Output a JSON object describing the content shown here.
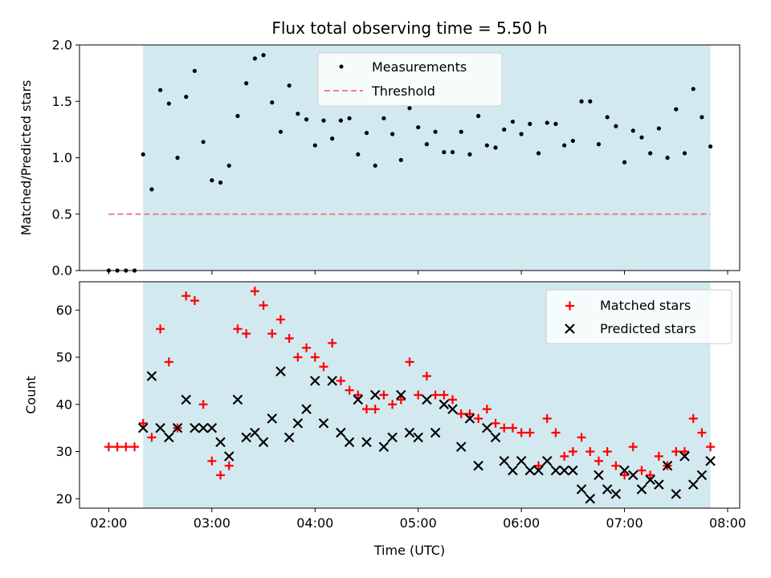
{
  "chart_data": [
    {
      "type": "scatter",
      "title": "Flux total observing time = 5.50 h",
      "xlabel": "",
      "ylabel": "Matched/Predicted stars",
      "xlim": [
        "01:43",
        "08:07"
      ],
      "ylim": [
        0,
        2.0
      ],
      "yticks": [
        "0.0",
        "0.5",
        "1.0",
        "1.5",
        "2.0"
      ],
      "xticks": [
        "02:00",
        "03:00",
        "04:00",
        "05:00",
        "06:00",
        "07:00",
        "08:00"
      ],
      "shaded_span": {
        "start": "02:20",
        "end": "07:50",
        "color": "#d3e9f0"
      },
      "legend": {
        "placement": "top-center",
        "entries": [
          "Measurements",
          "Threshold"
        ]
      },
      "series": [
        {
          "name": "Measurements",
          "marker": "dot",
          "color": "#000000",
          "x": [
            "02:00",
            "02:05",
            "02:10",
            "02:15",
            "02:20",
            "02:25",
            "02:30",
            "02:35",
            "02:40",
            "02:45",
            "02:50",
            "02:55",
            "03:00",
            "03:05",
            "03:10",
            "03:15",
            "03:20",
            "03:25",
            "03:30",
            "03:35",
            "03:40",
            "03:45",
            "03:50",
            "03:55",
            "04:00",
            "04:05",
            "04:10",
            "04:15",
            "04:20",
            "04:25",
            "04:30",
            "04:35",
            "04:40",
            "04:45",
            "04:50",
            "04:55",
            "05:00",
            "05:05",
            "05:10",
            "05:15",
            "05:20",
            "05:25",
            "05:30",
            "05:35",
            "05:40",
            "05:45",
            "05:50",
            "05:55",
            "06:00",
            "06:05",
            "06:10",
            "06:15",
            "06:20",
            "06:25",
            "06:30",
            "06:35",
            "06:40",
            "06:45",
            "06:50",
            "06:55",
            "07:00",
            "07:05",
            "07:10",
            "07:15",
            "07:20",
            "07:25",
            "07:30",
            "07:35",
            "07:40",
            "07:45",
            "07:50"
          ],
          "y": [
            0,
            0,
            0,
            0,
            1.03,
            0.72,
            1.6,
            1.48,
            1.0,
            1.54,
            1.77,
            1.14,
            0.8,
            0.78,
            0.93,
            1.37,
            1.66,
            1.88,
            1.91,
            1.49,
            1.23,
            1.64,
            1.39,
            1.34,
            1.11,
            1.33,
            1.17,
            1.33,
            1.35,
            1.03,
            1.22,
            0.93,
            1.35,
            1.21,
            0.98,
            1.44,
            1.27,
            1.12,
            1.23,
            1.05,
            1.05,
            1.23,
            1.03,
            1.37,
            1.11,
            1.09,
            1.25,
            1.32,
            1.21,
            1.3,
            1.04,
            1.31,
            1.3,
            1.11,
            1.15,
            1.5,
            1.5,
            1.12,
            1.36,
            1.28,
            0.96,
            1.24,
            1.18,
            1.04,
            1.26,
            1.0,
            1.43,
            1.04,
            1.61,
            1.36,
            1.1
          ]
        },
        {
          "name": "Threshold",
          "marker": "dashed-line",
          "color": "#f08080",
          "x": [
            "02:00",
            "07:50"
          ],
          "y": [
            0.5,
            0.5
          ]
        }
      ]
    },
    {
      "type": "scatter",
      "title": "",
      "xlabel": "Time (UTC)",
      "ylabel": "Count",
      "xlim": [
        "01:43",
        "08:07"
      ],
      "ylim": [
        18,
        66
      ],
      "yticks": [
        "20",
        "30",
        "40",
        "50",
        "60"
      ],
      "xticks": [
        "02:00",
        "03:00",
        "04:00",
        "05:00",
        "06:00",
        "07:00",
        "08:00"
      ],
      "shaded_span": {
        "start": "02:20",
        "end": "07:50",
        "color": "#d3e9f0"
      },
      "legend": {
        "placement": "top-right",
        "entries": [
          "Matched stars",
          "Predicted stars"
        ]
      },
      "series": [
        {
          "name": "Matched stars",
          "marker": "plus",
          "color": "#ff0000",
          "x": [
            "02:00",
            "02:05",
            "02:10",
            "02:15",
            "02:20",
            "02:25",
            "02:30",
            "02:35",
            "02:40",
            "02:45",
            "02:50",
            "02:55",
            "03:00",
            "03:05",
            "03:10",
            "03:15",
            "03:20",
            "03:25",
            "03:30",
            "03:35",
            "03:40",
            "03:45",
            "03:50",
            "03:55",
            "04:00",
            "04:05",
            "04:10",
            "04:15",
            "04:20",
            "04:25",
            "04:30",
            "04:35",
            "04:40",
            "04:45",
            "04:50",
            "04:55",
            "05:00",
            "05:05",
            "05:10",
            "05:15",
            "05:20",
            "05:25",
            "05:30",
            "05:35",
            "05:40",
            "05:45",
            "05:50",
            "05:55",
            "06:00",
            "06:05",
            "06:10",
            "06:15",
            "06:20",
            "06:25",
            "06:30",
            "06:35",
            "06:40",
            "06:45",
            "06:50",
            "06:55",
            "07:00",
            "07:05",
            "07:10",
            "07:15",
            "07:20",
            "07:25",
            "07:30",
            "07:35",
            "07:40",
            "07:45",
            "07:50"
          ],
          "y": [
            31,
            31,
            31,
            31,
            36,
            33,
            56,
            49,
            35,
            63,
            62,
            40,
            28,
            25,
            27,
            56,
            55,
            64,
            61,
            55,
            58,
            54,
            50,
            52,
            50,
            48,
            53,
            45,
            43,
            42,
            39,
            39,
            42,
            40,
            41,
            49,
            42,
            46,
            42,
            42,
            41,
            38,
            38,
            37,
            39,
            36,
            35,
            35,
            34,
            34,
            27,
            37,
            34,
            29,
            30,
            33,
            30,
            28,
            30,
            27,
            25,
            31,
            26,
            25,
            29,
            27,
            30,
            30,
            37,
            34,
            31
          ]
        },
        {
          "name": "Predicted stars",
          "marker": "x",
          "color": "#000000",
          "x": [
            "02:20",
            "02:25",
            "02:30",
            "02:35",
            "02:40",
            "02:45",
            "02:50",
            "02:55",
            "03:00",
            "03:05",
            "03:10",
            "03:15",
            "03:20",
            "03:25",
            "03:30",
            "03:35",
            "03:40",
            "03:45",
            "03:50",
            "03:55",
            "04:00",
            "04:05",
            "04:10",
            "04:15",
            "04:20",
            "04:25",
            "04:30",
            "04:35",
            "04:40",
            "04:45",
            "04:50",
            "04:55",
            "05:00",
            "05:05",
            "05:10",
            "05:15",
            "05:20",
            "05:25",
            "05:30",
            "05:35",
            "05:40",
            "05:45",
            "05:50",
            "05:55",
            "06:00",
            "06:05",
            "06:10",
            "06:15",
            "06:20",
            "06:25",
            "06:30",
            "06:35",
            "06:40",
            "06:45",
            "06:50",
            "06:55",
            "07:00",
            "07:05",
            "07:10",
            "07:15",
            "07:20",
            "07:25",
            "07:30",
            "07:35",
            "07:40",
            "07:45",
            "07:50"
          ],
          "y": [
            35,
            46,
            35,
            33,
            35,
            41,
            35,
            35,
            35,
            32,
            29,
            41,
            33,
            34,
            32,
            37,
            47,
            33,
            36,
            39,
            45,
            36,
            45,
            34,
            32,
            41,
            32,
            42,
            31,
            33,
            42,
            34,
            33,
            41,
            34,
            40,
            39,
            31,
            37,
            27,
            35,
            33,
            28,
            26,
            28,
            26,
            26,
            28,
            26,
            26,
            26,
            22,
            20,
            25,
            22,
            21,
            26,
            25,
            22,
            24,
            23,
            27,
            21,
            29,
            23,
            25,
            28
          ]
        }
      ]
    }
  ]
}
